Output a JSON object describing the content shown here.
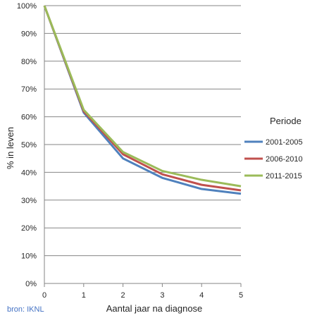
{
  "chart_data": {
    "type": "line",
    "x": [
      0,
      1,
      2,
      3,
      4,
      5
    ],
    "x_tick_labels": [
      "0",
      "1",
      "2",
      "3",
      "4",
      "5"
    ],
    "xlabel": "Aantal jaar na diagnose",
    "ylabel": "% in leven",
    "ylim": [
      0,
      100
    ],
    "y_tick_labels": [
      "0%",
      "10%",
      "20%",
      "30%",
      "40%",
      "50%",
      "60%",
      "70%",
      "80%",
      "90%",
      "100%"
    ],
    "grid": "horizontal",
    "legend": {
      "title": "Periode",
      "placement": "right"
    },
    "series": [
      {
        "name": "2001-2005",
        "color": "#4F81BD",
        "values": [
          100,
          61.5,
          45,
          38,
          34,
          32.3
        ]
      },
      {
        "name": "2006-2010",
        "color": "#C0504D",
        "values": [
          100,
          62,
          46.5,
          39.3,
          35.5,
          33.5
        ]
      },
      {
        "name": "2011-2015",
        "color": "#9BBB59",
        "values": [
          100,
          62.5,
          47.3,
          40.5,
          37.3,
          35
        ]
      }
    ]
  },
  "source_text": "bron: IKNL"
}
